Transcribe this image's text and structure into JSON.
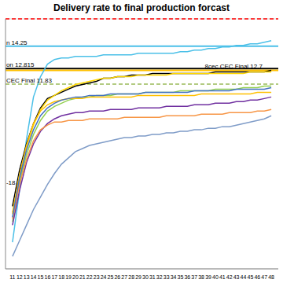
{
  "chart_data": {
    "type": "line",
    "title": "Delivery rate to final production forcast",
    "x": [
      11,
      12,
      13,
      14,
      15,
      16,
      17,
      18,
      19,
      20,
      21,
      22,
      23,
      24,
      25,
      26,
      27,
      28,
      29,
      30,
      31,
      32,
      33,
      34,
      35,
      36,
      37,
      38,
      39,
      40,
      41,
      42,
      43,
      44,
      45,
      46,
      47,
      48
    ],
    "xlim": [
      10,
      49
    ],
    "xticks": [
      11,
      12,
      13,
      14,
      15,
      16,
      17,
      18,
      19,
      20,
      21,
      22,
      23,
      24,
      25,
      26,
      27,
      28,
      29,
      30,
      31,
      32,
      33,
      34,
      35,
      36,
      37,
      38,
      39,
      40,
      41,
      42,
      43,
      44,
      45,
      46,
      47,
      48
    ],
    "ylim": [
      0,
      16
    ],
    "yticks": [
      0,
      4,
      8,
      12,
      16
    ],
    "grid": true,
    "tick_labels": "x",
    "marker": "none",
    "series": [
      {
        "color": "#4bc0e8",
        "values": [
          1.7,
          5.0,
          8.3,
          11.0,
          12.3,
          13.1,
          13.4,
          13.5,
          13.5,
          13.6,
          13.6,
          13.6,
          13.6,
          13.7,
          13.7,
          13.7,
          13.7,
          13.7,
          13.8,
          13.8,
          13.8,
          13.8,
          13.8,
          13.8,
          13.9,
          13.9,
          14.0,
          14.0,
          14.1,
          14.1,
          14.2,
          14.2,
          14.3,
          14.3,
          14.4,
          14.4,
          14.5,
          14.6
        ]
      },
      {
        "color": "#000000",
        "values": [
          4.0,
          6.3,
          8.0,
          9.3,
          10.3,
          10.9,
          11.1,
          11.3,
          11.5,
          11.7,
          11.8,
          11.9,
          12.0,
          12.2,
          12.2,
          12.3,
          12.3,
          12.4,
          12.4,
          12.4,
          12.5,
          12.5,
          12.5,
          12.5,
          12.5,
          12.5,
          12.5,
          12.5,
          12.5,
          12.6,
          12.6,
          12.6,
          12.6,
          12.6,
          12.6,
          12.6,
          12.6,
          12.7
        ]
      },
      {
        "color": "#ffd700",
        "values": [
          3.5,
          6.0,
          7.8,
          9.2,
          10.2,
          10.8,
          11.1,
          11.4,
          11.6,
          11.8,
          11.9,
          12.0,
          12.1,
          12.2,
          12.2,
          12.3,
          12.3,
          12.3,
          12.4,
          12.4,
          12.4,
          12.4,
          12.4,
          12.5,
          12.5,
          12.5,
          12.5,
          12.5,
          12.5,
          12.5,
          12.5,
          12.5,
          12.5,
          12.5,
          12.6,
          12.6,
          12.6,
          12.6
        ]
      },
      {
        "color": "#92d050",
        "values": [
          3.0,
          5.5,
          7.3,
          8.6,
          9.5,
          10.1,
          10.4,
          10.6,
          10.8,
          10.9,
          11.0,
          11.0,
          11.1,
          11.1,
          11.1,
          11.2,
          11.2,
          11.2,
          11.2,
          11.3,
          11.3,
          11.3,
          11.3,
          11.3,
          11.4,
          11.4,
          11.4,
          11.4,
          11.4,
          11.5,
          11.5,
          11.5,
          11.5,
          11.6,
          11.6,
          11.6,
          11.7,
          11.7
        ]
      },
      {
        "color": "#7030a0",
        "values": [
          2.8,
          5.0,
          6.8,
          8.0,
          8.8,
          9.3,
          9.6,
          9.8,
          9.9,
          10.0,
          10.0,
          10.1,
          10.1,
          10.1,
          10.2,
          10.2,
          10.2,
          10.2,
          10.3,
          10.3,
          10.3,
          10.3,
          10.4,
          10.4,
          10.4,
          10.4,
          10.5,
          10.5,
          10.5,
          10.6,
          10.6,
          10.6,
          10.7,
          10.7,
          10.8,
          10.8,
          10.9,
          11.0
        ]
      },
      {
        "color": "#f79646",
        "values": [
          3.2,
          5.4,
          7.0,
          8.2,
          8.9,
          9.2,
          9.4,
          9.4,
          9.5,
          9.5,
          9.5,
          9.6,
          9.6,
          9.6,
          9.6,
          9.6,
          9.7,
          9.7,
          9.7,
          9.7,
          9.7,
          9.7,
          9.8,
          9.8,
          9.8,
          9.8,
          9.8,
          9.9,
          9.9,
          9.9,
          9.9,
          10.0,
          10.0,
          10.0,
          10.0,
          10.1,
          10.1,
          10.2
        ]
      },
      {
        "color": "#ffc000",
        "values": [
          3.6,
          6.0,
          7.9,
          9.3,
          10.1,
          10.5,
          10.7,
          10.8,
          10.9,
          10.9,
          10.9,
          11.0,
          11.0,
          11.0,
          11.0,
          11.0,
          11.0,
          11.0,
          11.1,
          11.1,
          11.1,
          11.1,
          11.1,
          11.1,
          11.1,
          11.1,
          11.1,
          11.2,
          11.2,
          11.2,
          11.2,
          11.2,
          11.2,
          11.2,
          11.2,
          11.3,
          11.3,
          11.3
        ]
      },
      {
        "color": "#7f9cc8",
        "values": [
          0.8,
          1.8,
          2.8,
          3.8,
          4.6,
          5.4,
          6.1,
          6.7,
          7.1,
          7.5,
          7.7,
          7.9,
          8.0,
          8.1,
          8.2,
          8.3,
          8.4,
          8.4,
          8.5,
          8.5,
          8.6,
          8.6,
          8.7,
          8.7,
          8.8,
          8.8,
          8.9,
          8.9,
          9.0,
          9.0,
          9.1,
          9.1,
          9.2,
          9.3,
          9.4,
          9.5,
          9.6,
          9.8
        ]
      },
      {
        "color": "#4472c4",
        "values": [
          3.3,
          5.8,
          7.6,
          8.9,
          9.8,
          10.3,
          10.6,
          10.8,
          10.9,
          11.0,
          11.0,
          11.1,
          11.1,
          11.1,
          11.2,
          11.2,
          11.2,
          11.2,
          11.2,
          11.3,
          11.3,
          11.3,
          11.3,
          11.3,
          11.3,
          11.3,
          11.4,
          11.4,
          11.4,
          11.4,
          11.4,
          11.4,
          11.5,
          11.5,
          11.5,
          11.5,
          11.5,
          11.6
        ]
      }
    ],
    "annotations": [
      {
        "y": 16,
        "color": "#ff0000",
        "line_style": "dashed"
      },
      {
        "text": "n 14.25",
        "x": 10.1,
        "y": 14.25,
        "color": "#4bc0e8",
        "line_style": "solid"
      },
      {
        "text": "on 12.815",
        "x": 10.1,
        "y": 12.815,
        "color": "#000000",
        "line_style": "solid"
      },
      {
        "text": "8cec CEC Final 12.7",
        "x": 38.5,
        "y": 12.7,
        "color": "#ffc000",
        "line_style": "solid"
      },
      {
        "text": "CEC Final 11.83",
        "x": 10.1,
        "y": 11.83,
        "color": "#9bbb59",
        "line_style": "dashed"
      },
      {
        "text": "-18",
        "x": 10.1,
        "y": 5.3,
        "color": "#000000",
        "line_style": "none"
      }
    ]
  }
}
